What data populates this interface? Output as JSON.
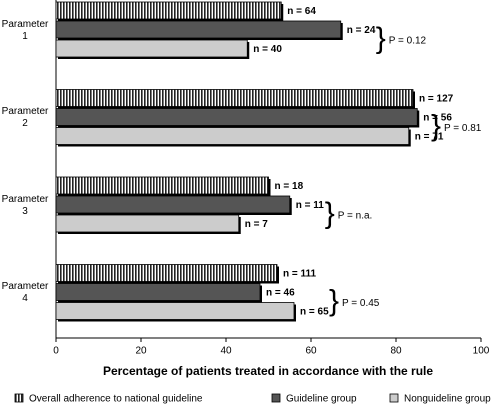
{
  "chart_data": {
    "type": "bar",
    "orientation": "horizontal",
    "x_label": "Percentage of patients treated in accordance with the rule",
    "categories": [
      "Parameter 1",
      "Parameter 2",
      "Parameter 3",
      "Parameter 4"
    ],
    "series": [
      {
        "name": "Overall adherence to national guideline",
        "color": "#ffffff",
        "hatch": true,
        "values": [
          53,
          84,
          50,
          52
        ],
        "annotations": [
          "n = 64",
          "n = 127",
          "n = 18",
          "n = 111"
        ]
      },
      {
        "name": "Guideline group",
        "color": "#555555",
        "hatch": false,
        "values": [
          67,
          85,
          55,
          48
        ],
        "annotations": [
          "n = 24",
          "n = 56",
          "n = 11",
          "n = 46"
        ]
      },
      {
        "name": "Nonguideline group",
        "color": "#cccccc",
        "hatch": false,
        "values": [
          45,
          83,
          43,
          56
        ],
        "annotations": [
          "n = 40",
          "n = 71",
          "n = 7",
          "n = 65"
        ]
      }
    ],
    "p_values": [
      "P = 0.12",
      "P = 0.81",
      "P = n.a.",
      "P = 0.45"
    ],
    "xlim": [
      0,
      100
    ],
    "xticks": [
      0,
      20,
      40,
      60,
      80,
      100
    ],
    "legend": "bottom"
  }
}
